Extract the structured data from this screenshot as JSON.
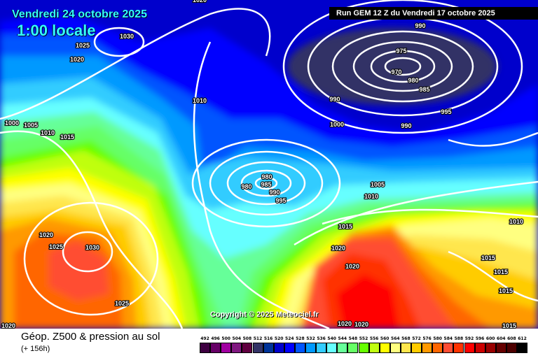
{
  "header": {
    "date": "Vendredi 24 octobre 2025",
    "local_time": "1:00 locale",
    "run": "Run GEM 12 Z du Vendredi 17 octobre 2025"
  },
  "copyright": "Copyright © 2025 Meteociel.fr",
  "footer": {
    "title": "Géop. Z500 & pression au sol",
    "lead_time": "(+ 156h)"
  },
  "legend": [
    {
      "value": "492",
      "color": "#3d0040"
    },
    {
      "value": "496",
      "color": "#660066"
    },
    {
      "value": "500",
      "color": "#a000a0"
    },
    {
      "value": "504",
      "color": "#801880"
    },
    {
      "value": "508",
      "color": "#600040"
    },
    {
      "value": "512",
      "color": "#333366"
    },
    {
      "value": "516",
      "color": "#003399"
    },
    {
      "value": "520",
      "color": "#0000cc"
    },
    {
      "value": "524",
      "color": "#0000ff"
    },
    {
      "value": "528",
      "color": "#0055ff"
    },
    {
      "value": "532",
      "color": "#0099ff"
    },
    {
      "value": "536",
      "color": "#33ccff"
    },
    {
      "value": "540",
      "color": "#66ffff"
    },
    {
      "value": "544",
      "color": "#66ff99"
    },
    {
      "value": "548",
      "color": "#66ff66"
    },
    {
      "value": "552",
      "color": "#66ff00"
    },
    {
      "value": "556",
      "color": "#c0ff11"
    },
    {
      "value": "560",
      "color": "#ffff00"
    },
    {
      "value": "564",
      "color": "#ffff80"
    },
    {
      "value": "568",
      "color": "#ffe64d"
    },
    {
      "value": "572",
      "color": "#ffcc00"
    },
    {
      "value": "576",
      "color": "#ff9900"
    },
    {
      "value": "580",
      "color": "#ff6600"
    },
    {
      "value": "584",
      "color": "#ff4d33"
    },
    {
      "value": "588",
      "color": "#ff3300"
    },
    {
      "value": "592",
      "color": "#ff0000"
    },
    {
      "value": "596",
      "color": "#cc0000"
    },
    {
      "value": "600",
      "color": "#990000"
    },
    {
      "value": "604",
      "color": "#660000"
    },
    {
      "value": "608",
      "color": "#4d0000"
    },
    {
      "value": "612",
      "color": "#000000"
    }
  ],
  "isobar_labels": [
    "1020",
    "1030",
    "1025",
    "1020",
    "990",
    "975",
    "970",
    "980",
    "985",
    "990",
    "1010",
    "995",
    "1000",
    "1005",
    "1010",
    "1015",
    "1000",
    "990",
    "980",
    "985",
    "980",
    "990",
    "995",
    "1005",
    "1010",
    "1015",
    "1010",
    "1020",
    "1025",
    "1030",
    "1020",
    "1020",
    "1015",
    "1015",
    "1015",
    "1025",
    "1020",
    "1020",
    "1015",
    "1020"
  ]
}
